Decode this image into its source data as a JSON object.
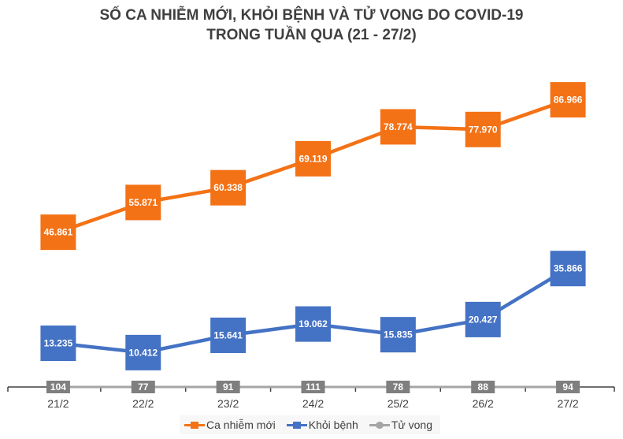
{
  "chart_data": {
    "type": "line",
    "title": "SỐ CA NHIỄM MỚI, KHỎI BỆNH VÀ TỬ VONG DO COVID-19",
    "subtitle": "TRONG TUẦN QUA (21 - 27/2)",
    "xlabel": "",
    "ylabel": "",
    "ylim": [
      0,
      95000
    ],
    "grid": false,
    "legend_position": "bottom",
    "categories": [
      "21/2",
      "22/2",
      "23/2",
      "24/2",
      "25/2",
      "26/2",
      "27/2"
    ],
    "series": [
      {
        "name": "Ca nhiễm mới",
        "color": "#f47216",
        "values": [
          46861,
          55871,
          60338,
          69119,
          78774,
          77970,
          86966
        ],
        "labels": [
          "46.861",
          "55.871",
          "60.338",
          "69.119",
          "78.774",
          "77.970",
          "86.966"
        ]
      },
      {
        "name": "Khỏi bệnh",
        "color": "#4472c4",
        "values": [
          13235,
          10412,
          15641,
          19062,
          15835,
          20427,
          35866
        ],
        "labels": [
          "13.235",
          "10.412",
          "15.641",
          "19.062",
          "15.835",
          "20.427",
          "35.866"
        ]
      },
      {
        "name": "Tử vong",
        "color": "#a5a5a5",
        "label_bg": "#7f7f7f",
        "values": [
          104,
          77,
          91,
          111,
          78,
          88,
          94
        ],
        "labels": [
          "104",
          "77",
          "91",
          "111",
          "78",
          "88",
          "94"
        ]
      }
    ]
  }
}
